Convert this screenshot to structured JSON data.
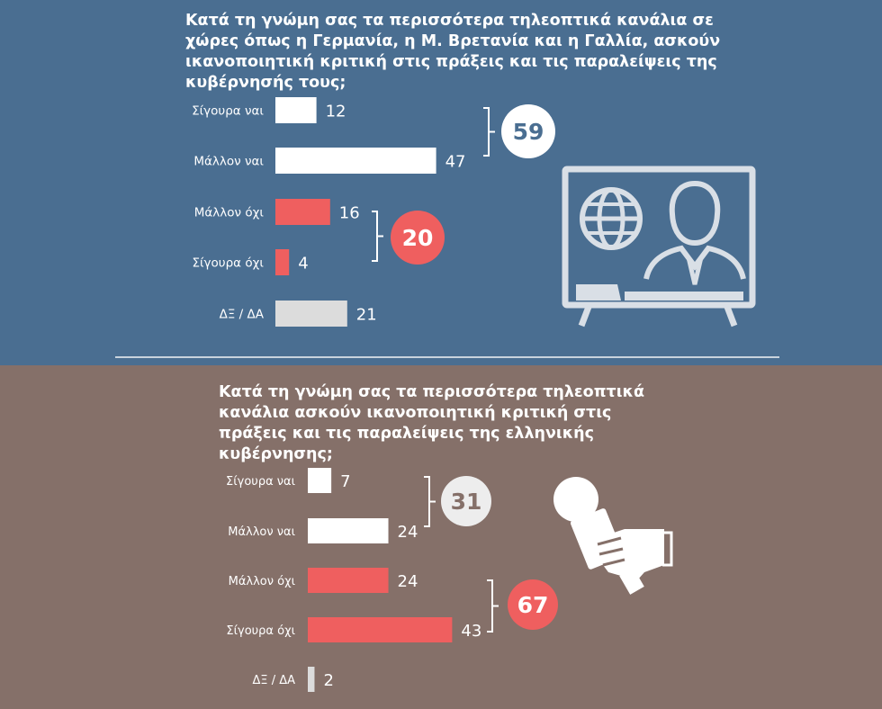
{
  "colors": {
    "top_bg": "#4a6e91",
    "bottom_bg": "#857069",
    "positive": "#ffffff",
    "negative": "#ef5f5f",
    "unknown": "#dcdcdc",
    "icon": "#d9dfe6"
  },
  "icons": [
    "tv-broadcast-icon",
    "microphone-hand-icon"
  ],
  "chart_data": [
    {
      "type": "bar",
      "orientation": "horizontal",
      "title": "Κατά τη γνώμη σας τα περισσότερα τηλεοπτικά κανάλια σε χώρες όπως η Γερμανία, η Μ. Βρετανία και η Γαλλία, ασκούν ικανοποιητική κριτική στις πράξεις και τις παραλείψεις της κυβέρνησής τους;",
      "categories": [
        "Σίγουρα ναι",
        "Μάλλον ναι",
        "Μάλλον όχι",
        "Σίγουρα όχι",
        "ΔΞ / ΔΑ"
      ],
      "values": [
        12,
        47,
        16,
        4,
        21
      ],
      "groups": [
        {
          "total": "59",
          "members": [
            "Σίγουρα ναι",
            "Μάλλον ναι"
          ]
        },
        {
          "total": "20",
          "members": [
            "Μάλλον όχι",
            "Σίγουρα όχι"
          ]
        }
      ]
    },
    {
      "type": "bar",
      "orientation": "horizontal",
      "title": "Κατά τη γνώμη σας τα περισσότερα τηλεοπτικά κανάλια ασκούν ικανοποιητική κριτική στις πράξεις και τις παραλείψεις της ελληνικής κυβέρνησης;",
      "categories": [
        "Σίγουρα ναι",
        "Μάλλον ναι",
        "Μάλλον όχι",
        "Σίγουρα όχι",
        "ΔΞ / ΔΑ"
      ],
      "values": [
        7,
        24,
        24,
        43,
        2
      ],
      "groups": [
        {
          "total": "31",
          "members": [
            "Σίγουρα ναι",
            "Μάλλον ναι"
          ]
        },
        {
          "total": "67",
          "members": [
            "Μάλλον όχι",
            "Σίγουρα όχι"
          ]
        }
      ]
    }
  ]
}
